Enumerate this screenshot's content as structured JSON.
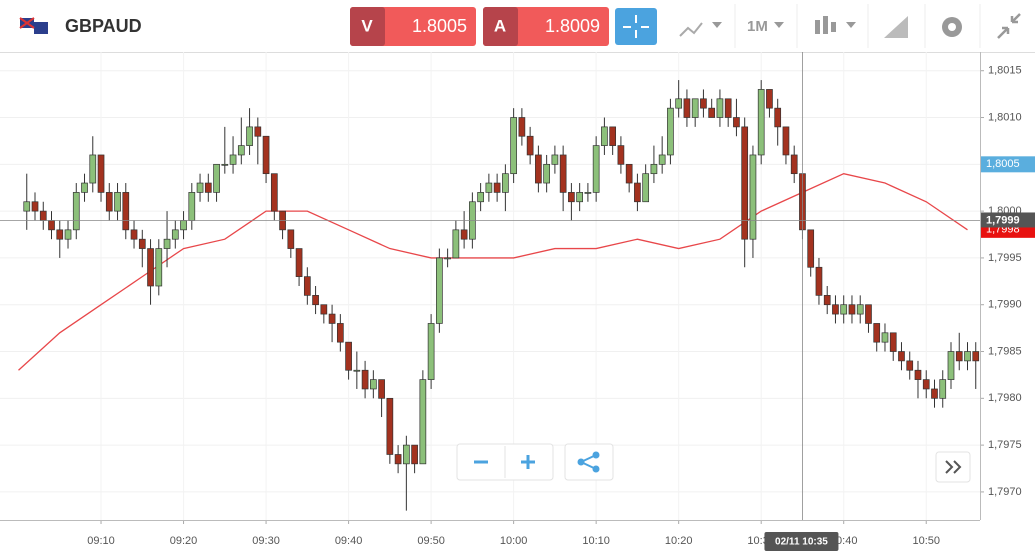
{
  "header": {
    "symbol": "GBPAUD",
    "sell": {
      "label": "V",
      "price": "1.8005"
    },
    "buy": {
      "label": "A",
      "price": "1.8009"
    },
    "timeframe": "1M"
  },
  "chart_data": {
    "type": "candlestick",
    "up_color": "#8cc07a",
    "down_color": "#a3321f",
    "xlim": [
      "08:58",
      "10:57"
    ],
    "ylim": [
      1.7967,
      1.8017
    ],
    "xticks": [
      "09:10",
      "09:20",
      "09:30",
      "09:40",
      "09:50",
      "10:00",
      "10:10",
      "10:20",
      "10:30",
      "10:40",
      "10:50"
    ],
    "yticks": [
      {
        "value": 1.797,
        "label": "1,7970"
      },
      {
        "value": 1.7975,
        "label": "1,7975"
      },
      {
        "value": 1.798,
        "label": "1,7980"
      },
      {
        "value": 1.7985,
        "label": "1,7985"
      },
      {
        "value": 1.799,
        "label": "1,7990"
      },
      {
        "value": 1.7995,
        "label": "1,7995"
      },
      {
        "value": 1.8,
        "label": "1,8000"
      },
      {
        "value": 1.8005,
        "label": "1,8005"
      },
      {
        "value": 1.801,
        "label": "1,8010"
      },
      {
        "value": 1.8015,
        "label": "1,8015"
      }
    ],
    "grid": true,
    "x": [
      "09:01",
      "09:02",
      "09:03",
      "09:04",
      "09:05",
      "09:06",
      "09:07",
      "09:08",
      "09:09",
      "09:10",
      "09:11",
      "09:12",
      "09:13",
      "09:14",
      "09:15",
      "09:16",
      "09:17",
      "09:18",
      "09:19",
      "09:20",
      "09:21",
      "09:22",
      "09:23",
      "09:24",
      "09:25",
      "09:26",
      "09:27",
      "09:28",
      "09:29",
      "09:30",
      "09:31",
      "09:32",
      "09:33",
      "09:34",
      "09:35",
      "09:36",
      "09:37",
      "09:38",
      "09:39",
      "09:40",
      "09:41",
      "09:42",
      "09:43",
      "09:44",
      "09:45",
      "09:46",
      "09:47",
      "09:48",
      "09:49",
      "09:50",
      "09:51",
      "09:52",
      "09:53",
      "09:54",
      "09:55",
      "09:56",
      "09:57",
      "09:58",
      "09:59",
      "10:00",
      "10:01",
      "10:02",
      "10:03",
      "10:04",
      "10:05",
      "10:06",
      "10:07",
      "10:08",
      "10:09",
      "10:10",
      "10:11",
      "10:12",
      "10:13",
      "10:14",
      "10:15",
      "10:16",
      "10:17",
      "10:18",
      "10:19",
      "10:20",
      "10:21",
      "10:22",
      "10:23",
      "10:24",
      "10:25",
      "10:26",
      "10:27",
      "10:28",
      "10:29",
      "10:30",
      "10:31",
      "10:32",
      "10:33",
      "10:34",
      "10:35",
      "10:36",
      "10:37",
      "10:38",
      "10:39",
      "10:40",
      "10:41",
      "10:42",
      "10:43",
      "10:44",
      "10:45",
      "10:46",
      "10:47",
      "10:48",
      "10:49",
      "10:50",
      "10:51",
      "10:52",
      "10:53",
      "10:54",
      "10:55",
      "10:56"
    ],
    "ohlc": [
      [
        1.8,
        1.8004,
        1.7998,
        1.8001
      ],
      [
        1.8001,
        1.8002,
        1.7999,
        1.8
      ],
      [
        1.8,
        1.8001,
        1.7998,
        1.7999
      ],
      [
        1.7999,
        1.8,
        1.7997,
        1.7998
      ],
      [
        1.7998,
        1.7999,
        1.7995,
        1.7997
      ],
      [
        1.7997,
        1.7999,
        1.7996,
        1.7998
      ],
      [
        1.7998,
        1.8003,
        1.7997,
        1.8002
      ],
      [
        1.8002,
        1.8004,
        1.8001,
        1.8003
      ],
      [
        1.8003,
        1.8008,
        1.8002,
        1.8006
      ],
      [
        1.8006,
        1.8006,
        1.8001,
        1.8002
      ],
      [
        1.8002,
        1.8003,
        1.7999,
        1.8
      ],
      [
        1.8,
        1.8003,
        1.7999,
        1.8002
      ],
      [
        1.8002,
        1.8003,
        1.7997,
        1.7998
      ],
      [
        1.7998,
        1.7999,
        1.7996,
        1.7997
      ],
      [
        1.7997,
        1.7998,
        1.7994,
        1.7996
      ],
      [
        1.7996,
        1.7997,
        1.799,
        1.7992
      ],
      [
        1.7992,
        1.7997,
        1.7991,
        1.7996
      ],
      [
        1.7996,
        1.8,
        1.7994,
        1.7997
      ],
      [
        1.7997,
        1.7999,
        1.7996,
        1.7998
      ],
      [
        1.7998,
        1.8,
        1.7997,
        1.7999
      ],
      [
        1.7999,
        1.8003,
        1.7998,
        1.8002
      ],
      [
        1.8002,
        1.8004,
        1.8001,
        1.8003
      ],
      [
        1.8003,
        1.8004,
        1.8001,
        1.8002
      ],
      [
        1.8002,
        1.8005,
        1.8001,
        1.8005
      ],
      [
        1.8005,
        1.8009,
        1.8004,
        1.8005
      ],
      [
        1.8005,
        1.8008,
        1.8004,
        1.8006
      ],
      [
        1.8006,
        1.801,
        1.8005,
        1.8007
      ],
      [
        1.8007,
        1.8011,
        1.8006,
        1.8009
      ],
      [
        1.8009,
        1.801,
        1.8005,
        1.8008
      ],
      [
        1.8008,
        1.8008,
        1.8003,
        1.8004
      ],
      [
        1.8004,
        1.8004,
        1.7999,
        1.8
      ],
      [
        1.8,
        1.8,
        1.7997,
        1.7998
      ],
      [
        1.7998,
        1.7998,
        1.7995,
        1.7996
      ],
      [
        1.7996,
        1.7996,
        1.7992,
        1.7993
      ],
      [
        1.7993,
        1.7994,
        1.799,
        1.7991
      ],
      [
        1.7991,
        1.7992,
        1.7989,
        1.799
      ],
      [
        1.799,
        1.799,
        1.7988,
        1.7989
      ],
      [
        1.7989,
        1.799,
        1.7986,
        1.7988
      ],
      [
        1.7988,
        1.7989,
        1.7985,
        1.7986
      ],
      [
        1.7986,
        1.7986,
        1.7982,
        1.7983
      ],
      [
        1.7983,
        1.7985,
        1.7981,
        1.7983
      ],
      [
        1.7983,
        1.7984,
        1.798,
        1.7981
      ],
      [
        1.7981,
        1.7983,
        1.798,
        1.7982
      ],
      [
        1.7982,
        1.7982,
        1.7978,
        1.798
      ],
      [
        1.798,
        1.798,
        1.7973,
        1.7974
      ],
      [
        1.7974,
        1.7975,
        1.7972,
        1.7973
      ],
      [
        1.7973,
        1.7976,
        1.7968,
        1.7975
      ],
      [
        1.7975,
        1.7975,
        1.7972,
        1.7973
      ],
      [
        1.7973,
        1.7983,
        1.7973,
        1.7982
      ],
      [
        1.7982,
        1.7989,
        1.7981,
        1.7988
      ],
      [
        1.7988,
        1.7996,
        1.7987,
        1.7995
      ],
      [
        1.7995,
        1.7996,
        1.7994,
        1.7995
      ],
      [
        1.7995,
        1.7999,
        1.7995,
        1.7998
      ],
      [
        1.7998,
        1.8,
        1.7996,
        1.7997
      ],
      [
        1.7997,
        1.8002,
        1.7996,
        1.8001
      ],
      [
        1.8001,
        1.8003,
        1.8,
        1.8002
      ],
      [
        1.8002,
        1.8004,
        1.8001,
        1.8003
      ],
      [
        1.8003,
        1.8004,
        1.8001,
        1.8002
      ],
      [
        1.8002,
        1.8005,
        1.8,
        1.8004
      ],
      [
        1.8004,
        1.8011,
        1.8003,
        1.801
      ],
      [
        1.801,
        1.8011,
        1.8007,
        1.8008
      ],
      [
        1.8008,
        1.8009,
        1.8005,
        1.8006
      ],
      [
        1.8006,
        1.8007,
        1.8002,
        1.8003
      ],
      [
        1.8003,
        1.8006,
        1.8002,
        1.8005
      ],
      [
        1.8005,
        1.8007,
        1.8004,
        1.8006
      ],
      [
        1.8006,
        1.8007,
        1.8,
        1.8002
      ],
      [
        1.8002,
        1.8003,
        1.7999,
        1.8001
      ],
      [
        1.8001,
        1.8003,
        1.8,
        1.8002
      ],
      [
        1.8002,
        1.8003,
        1.8001,
        1.8002
      ],
      [
        1.8002,
        1.8008,
        1.8001,
        1.8007
      ],
      [
        1.8007,
        1.801,
        1.8006,
        1.8009
      ],
      [
        1.8009,
        1.8009,
        1.8006,
        1.8007
      ],
      [
        1.8007,
        1.8008,
        1.8004,
        1.8005
      ],
      [
        1.8005,
        1.8005,
        1.8002,
        1.8003
      ],
      [
        1.8003,
        1.8004,
        1.8,
        1.8001
      ],
      [
        1.8001,
        1.8005,
        1.8001,
        1.8004
      ],
      [
        1.8004,
        1.8007,
        1.8003,
        1.8005
      ],
      [
        1.8005,
        1.8008,
        1.8004,
        1.8006
      ],
      [
        1.8006,
        1.8012,
        1.8005,
        1.8011
      ],
      [
        1.8011,
        1.8014,
        1.801,
        1.8012
      ],
      [
        1.8012,
        1.8013,
        1.8009,
        1.801
      ],
      [
        1.801,
        1.8012,
        1.8009,
        1.8012
      ],
      [
        1.8012,
        1.8013,
        1.801,
        1.8011
      ],
      [
        1.8011,
        1.8012,
        1.801,
        1.801
      ],
      [
        1.801,
        1.8013,
        1.8009,
        1.8012
      ],
      [
        1.8012,
        1.8012,
        1.8009,
        1.801
      ],
      [
        1.801,
        1.8012,
        1.8008,
        1.8009
      ],
      [
        1.8009,
        1.801,
        1.7994,
        1.7997
      ],
      [
        1.7997,
        1.8007,
        1.7995,
        1.8006
      ],
      [
        1.8006,
        1.8014,
        1.8005,
        1.8013
      ],
      [
        1.8013,
        1.8013,
        1.801,
        1.8011
      ],
      [
        1.8011,
        1.8012,
        1.8007,
        1.8009
      ],
      [
        1.8009,
        1.8009,
        1.8005,
        1.8006
      ],
      [
        1.8006,
        1.8007,
        1.8003,
        1.8004
      ],
      [
        1.8004,
        1.8004,
        1.7997,
        1.7998
      ],
      [
        1.7998,
        1.7998,
        1.7993,
        1.7994
      ],
      [
        1.7994,
        1.7995,
        1.799,
        1.7991
      ],
      [
        1.7991,
        1.7992,
        1.7989,
        1.799
      ],
      [
        1.799,
        1.7991,
        1.7988,
        1.7989
      ],
      [
        1.7989,
        1.7991,
        1.7988,
        1.799
      ],
      [
        1.799,
        1.7991,
        1.7988,
        1.7989
      ],
      [
        1.7989,
        1.7991,
        1.7988,
        1.799
      ],
      [
        1.799,
        1.799,
        1.7987,
        1.7988
      ],
      [
        1.7988,
        1.7988,
        1.7985,
        1.7986
      ],
      [
        1.7986,
        1.7988,
        1.7985,
        1.7987
      ],
      [
        1.7987,
        1.7987,
        1.7984,
        1.7985
      ],
      [
        1.7985,
        1.7986,
        1.7983,
        1.7984
      ],
      [
        1.7984,
        1.7985,
        1.7982,
        1.7983
      ],
      [
        1.7983,
        1.7984,
        1.798,
        1.7982
      ],
      [
        1.7982,
        1.7983,
        1.798,
        1.7981
      ],
      [
        1.7981,
        1.7982,
        1.7979,
        1.798
      ],
      [
        1.798,
        1.7983,
        1.7979,
        1.7982
      ],
      [
        1.7982,
        1.7986,
        1.7981,
        1.7985
      ],
      [
        1.7985,
        1.7987,
        1.7983,
        1.7984
      ],
      [
        1.7984,
        1.7986,
        1.7983,
        1.7985
      ],
      [
        1.7985,
        1.7986,
        1.7981,
        1.7984
      ]
    ],
    "overlay": {
      "color": "#e8474a",
      "x": [
        "09:00",
        "09:05",
        "09:10",
        "09:15",
        "09:20",
        "09:25",
        "09:30",
        "09:35",
        "09:40",
        "09:45",
        "09:50",
        "09:55",
        "10:00",
        "10:05",
        "10:10",
        "10:15",
        "10:20",
        "10:25",
        "10:30",
        "10:35",
        "10:40",
        "10:45",
        "10:50",
        "10:55"
      ],
      "values": [
        1.7983,
        1.7987,
        1.799,
        1.7993,
        1.7996,
        1.7997,
        1.8,
        1.8,
        1.7998,
        1.7996,
        1.7995,
        1.7995,
        1.7995,
        1.7996,
        1.7996,
        1.7997,
        1.7996,
        1.7997,
        1.8,
        1.8002,
        1.8004,
        1.8003,
        1.8001,
        1.7998
      ]
    },
    "price_tags": [
      {
        "value": 1.8005,
        "label": "1,8005",
        "color": "#5aaede"
      },
      {
        "value": 1.7998,
        "label": "1,7998",
        "color": "#e8110f"
      }
    ],
    "crosshair": {
      "x": "10:35",
      "label": "02/11 10:35",
      "y": {
        "value": 1.7999,
        "label": "1,7999"
      }
    }
  }
}
